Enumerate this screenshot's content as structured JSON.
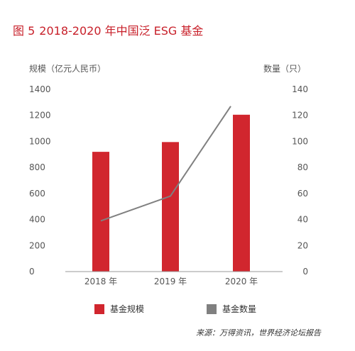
{
  "title": {
    "number": "图 5",
    "text": "2018-2020 年中国泛 ESG 基金"
  },
  "chart_data": {
    "type": "bar",
    "categories": [
      "2018 年",
      "2019 年",
      "2020 年"
    ],
    "series": [
      {
        "name": "基金规模",
        "type": "bar",
        "axis": "left",
        "color": "#d1262e",
        "values": [
          920,
          995,
          1205
        ]
      },
      {
        "name": "基金数量",
        "type": "line",
        "axis": "right",
        "color": "#808080",
        "values": [
          39,
          58,
          127
        ]
      }
    ],
    "ylabel_left": "规模（亿元人民币）",
    "ylabel_right": "数量（只）",
    "ylim_left": [
      0,
      1400
    ],
    "yticks_left": [
      "0",
      "200",
      "400",
      "600",
      "800",
      "1000",
      "1200",
      "1400"
    ],
    "ylim_right": [
      0,
      140
    ],
    "yticks_right": [
      "0",
      "20",
      "40",
      "60",
      "80",
      "100",
      "120",
      "140"
    ],
    "grid": false,
    "legend_position": "bottom"
  },
  "source": "来源：万得资讯，世界经济论坛报告"
}
